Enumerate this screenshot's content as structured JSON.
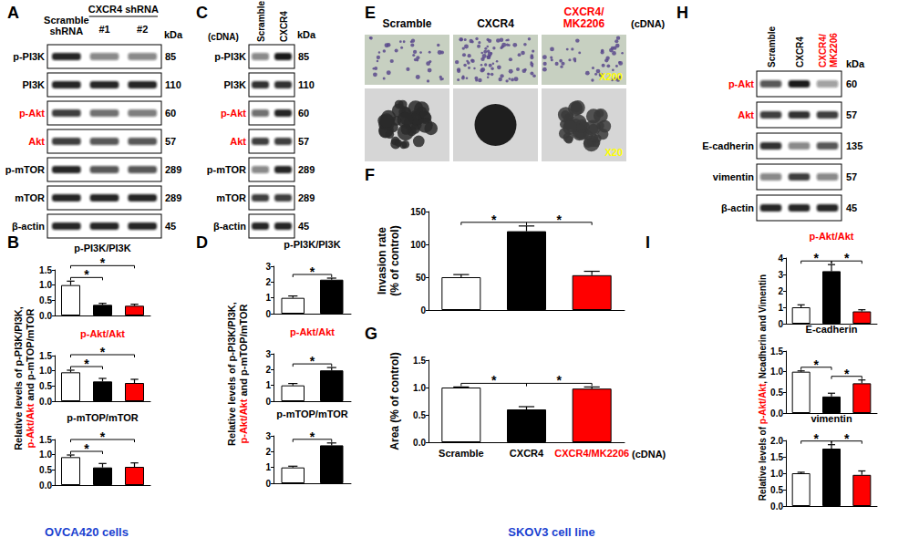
{
  "chart_data": [
    {
      "panel": "B",
      "type": "bar",
      "title": "p-PI3K/PI3K",
      "title_color": "#000000",
      "categories": [
        null,
        null,
        null
      ],
      "values": [
        1.0,
        0.35,
        0.32
      ],
      "errors": [
        0.13,
        0.05,
        0.05
      ],
      "colors": [
        "#ffffff",
        "#000000",
        "#ff0000"
      ],
      "ylim": [
        0,
        1.5
      ],
      "yticks": [
        {
          "value": 0,
          "label": "0.0"
        },
        0.5,
        {
          "value": 1,
          "label": "1.0"
        },
        1.5
      ],
      "significance": [
        [
          0,
          1
        ],
        [
          0,
          2
        ]
      ],
      "significance_label": "*",
      "tick_labels": "y"
    },
    {
      "panel": "B",
      "type": "bar",
      "title": "p-Akt/Akt",
      "title_color": "#ff0000",
      "categories": [
        null,
        null,
        null
      ],
      "values": [
        0.95,
        0.65,
        0.6
      ],
      "errors": [
        0.07,
        0.1,
        0.12
      ],
      "colors": [
        "#ffffff",
        "#000000",
        "#ff0000"
      ],
      "ylim": [
        0,
        1.5
      ],
      "yticks": [
        {
          "value": 0,
          "label": "0.0"
        },
        0.5,
        {
          "value": 1,
          "label": "1.0"
        },
        1.5
      ],
      "significance": [
        [
          0,
          1
        ],
        [
          0,
          2
        ]
      ],
      "significance_label": "*",
      "tick_labels": "y"
    },
    {
      "panel": "B",
      "type": "bar",
      "title": "p-mTOP/mTOR",
      "title_color": "#000000",
      "categories": [
        null,
        null,
        null
      ],
      "values": [
        0.92,
        0.58,
        0.6
      ],
      "errors": [
        0.07,
        0.13,
        0.13
      ],
      "colors": [
        "#ffffff",
        "#000000",
        "#ff0000"
      ],
      "ylim": [
        0,
        1.5
      ],
      "yticks": [
        {
          "value": 0,
          "label": "0.0"
        },
        0.5,
        {
          "value": 1,
          "label": "1.0"
        },
        1.5
      ],
      "significance": [
        [
          0,
          1
        ],
        [
          0,
          2
        ]
      ],
      "significance_label": "*",
      "tick_labels": "y"
    },
    {
      "panel": "D",
      "type": "bar",
      "title": "p-PI3K/PI3K",
      "title_color": "#000000",
      "categories": [
        null,
        null
      ],
      "values": [
        1.0,
        2.15
      ],
      "errors": [
        0.12,
        0.1
      ],
      "colors": [
        "#ffffff",
        "#000000"
      ],
      "ylim": [
        0,
        3
      ],
      "yticks": [
        0,
        1,
        2,
        3
      ],
      "significance": [
        [
          0,
          1
        ]
      ],
      "significance_label": "*",
      "tick_labels": "y"
    },
    {
      "panel": "D",
      "type": "bar",
      "title": "p-Akt/Akt",
      "title_color": "#ff0000",
      "categories": [
        null,
        null
      ],
      "values": [
        1.0,
        1.95
      ],
      "errors": [
        0.12,
        0.18
      ],
      "colors": [
        "#ffffff",
        "#000000"
      ],
      "ylim": [
        0,
        3
      ],
      "yticks": [
        0,
        1,
        2,
        3
      ],
      "significance": [
        [
          0,
          1
        ]
      ],
      "significance_label": "*",
      "tick_labels": "y"
    },
    {
      "panel": "D",
      "type": "bar",
      "title": "p-mTOP/mTOR",
      "title_color": "#000000",
      "categories": [
        null,
        null
      ],
      "values": [
        1.0,
        2.4
      ],
      "errors": [
        0.08,
        0.15
      ],
      "colors": [
        "#ffffff",
        "#000000"
      ],
      "ylim": [
        0,
        3
      ],
      "yticks": [
        0,
        1,
        2,
        3
      ],
      "significance": [
        [
          0,
          1
        ]
      ],
      "significance_label": "*",
      "tick_labels": "y"
    },
    {
      "panel": "F",
      "type": "bar",
      "ylabel": "Invasion rate\n(% of control)",
      "categories": [
        null,
        null,
        null
      ],
      "values": [
        50,
        120,
        53
      ],
      "errors": [
        4,
        8,
        6
      ],
      "colors": [
        "#ffffff",
        "#000000",
        "#ff0000"
      ],
      "ylim": [
        0,
        150
      ],
      "yticks": [
        0,
        50,
        100,
        150
      ],
      "significance": [
        [
          0,
          1
        ],
        [
          1,
          2
        ]
      ],
      "significance_label": "*",
      "tick_labels": "y"
    },
    {
      "panel": "G",
      "type": "bar",
      "ylabel": "Area (% of control)",
      "categories": [
        "Scramble",
        "CXCR4",
        "CXCR4/MK2206"
      ],
      "category_colors": [
        "#000000",
        "#000000",
        "#ff0000"
      ],
      "annotation": "(cDNA)",
      "values": [
        1.0,
        0.6,
        0.98
      ],
      "errors": [
        0.01,
        0.05,
        0.03
      ],
      "colors": [
        "#ffffff",
        "#000000",
        "#ff0000"
      ],
      "ylim": [
        0,
        1.5
      ],
      "yticks": [
        {
          "value": 0,
          "label": "0.0"
        },
        0.5,
        {
          "value": 1,
          "label": "1.0"
        },
        1.5
      ],
      "significance": [
        [
          0,
          1
        ],
        [
          1,
          2
        ]
      ],
      "significance_label": "*"
    },
    {
      "panel": "I",
      "type": "bar",
      "title": "p-Akt/Akt",
      "title_color": "#ff0000",
      "categories": [
        null,
        null,
        null
      ],
      "values": [
        1.0,
        3.2,
        0.75
      ],
      "errors": [
        0.15,
        0.4,
        0.1
      ],
      "colors": [
        "#ffffff",
        "#000000",
        "#ff0000"
      ],
      "ylim": [
        0,
        4
      ],
      "yticks": [
        0,
        1,
        2,
        3,
        4
      ],
      "significance": [
        [
          0,
          1
        ],
        [
          1,
          2
        ]
      ],
      "significance_label": "*",
      "tick_labels": "y"
    },
    {
      "panel": "I",
      "type": "bar",
      "title": "E-cadherin",
      "title_color": "#000000",
      "categories": [
        null,
        null,
        null
      ],
      "values": [
        1.0,
        0.4,
        0.72
      ],
      "errors": [
        0.02,
        0.08,
        0.08
      ],
      "colors": [
        "#ffffff",
        "#000000",
        "#ff0000"
      ],
      "ylim": [
        0,
        1.5
      ],
      "yticks": [
        {
          "value": 0,
          "label": "0.0"
        },
        0.5,
        {
          "value": 1,
          "label": "1.0"
        },
        1.5
      ],
      "significance": [
        [
          0,
          1
        ],
        [
          1,
          2
        ]
      ],
      "significance_label": "*",
      "tick_labels": "y"
    },
    {
      "panel": "I",
      "type": "bar",
      "title": "vimentin",
      "title_color": "#000000",
      "categories": [
        null,
        null,
        null
      ],
      "values": [
        1.0,
        1.75,
        0.95
      ],
      "errors": [
        0.03,
        0.12,
        0.12
      ],
      "colors": [
        "#ffffff",
        "#000000",
        "#ff0000"
      ],
      "ylim": [
        0,
        2
      ],
      "yticks": [
        {
          "value": 0,
          "label": "0.0"
        },
        0.5,
        {
          "value": 1,
          "label": "1.0"
        },
        1.5,
        {
          "value": 2,
          "label": "2.0"
        }
      ],
      "significance": [
        [
          0,
          1
        ],
        [
          1,
          2
        ]
      ],
      "significance_label": "*",
      "tick_labels": "y"
    }
  ],
  "axis_titles": [
    {
      "panel": "B",
      "lines": [
        [
          {
            "text": "Relative levels of p-PI3K/PI3K,",
            "color": "#000000"
          }
        ],
        [
          {
            "text": "p-Akt/Akt",
            "color": "#ff0000"
          },
          {
            "text": " and p-mTOP/mTOR",
            "color": "#000000"
          }
        ]
      ]
    },
    {
      "panel": "D",
      "lines": [
        [
          {
            "text": "Relative levels of p-PI3K/PI3K,",
            "color": "#000000"
          }
        ],
        [
          {
            "text": "p-Akt/Akt",
            "color": "#ff0000"
          },
          {
            "text": " and p-mTOP/mTOR",
            "color": "#000000"
          }
        ]
      ]
    },
    {
      "panel": "I",
      "lines": [
        [
          {
            "text": "Relative levels of ",
            "color": "#000000"
          },
          {
            "text": "p-Akt/Akt",
            "color": "#ff0000"
          },
          {
            "text": ", Ncadherin and Vimentin",
            "color": "#000000"
          }
        ]
      ]
    }
  ],
  "blots": [
    {
      "panel": "A",
      "columns": [
        "Scramble\nshRNA",
        "#1",
        "#2"
      ],
      "column_group": {
        "label": "CXCR4 shRNA",
        "columns": [
          1,
          2
        ]
      },
      "kda_header": "kDa",
      "rows": [
        {
          "label": "p-PI3K",
          "kda": 85,
          "color": "#000000",
          "bands": [
            0.9,
            0.5,
            0.5
          ]
        },
        {
          "label": "PI3K",
          "kda": 110,
          "color": "#000000",
          "bands": [
            0.9,
            0.9,
            0.9
          ]
        },
        {
          "label": "p-Akt",
          "kda": 60,
          "color": "#ff0000",
          "bands": [
            0.8,
            0.6,
            0.55
          ]
        },
        {
          "label": "Akt",
          "kda": 57,
          "color": "#ff0000",
          "bands": [
            0.8,
            0.7,
            0.7
          ]
        },
        {
          "label": "p-mTOR",
          "kda": 289,
          "color": "#000000",
          "bands": [
            0.9,
            0.7,
            0.7
          ]
        },
        {
          "label": "mTOR",
          "kda": 289,
          "color": "#000000",
          "bands": [
            0.9,
            0.9,
            0.9
          ]
        },
        {
          "label": "β-actin",
          "kda": 45,
          "color": "#000000",
          "bands": [
            0.9,
            0.9,
            0.9
          ]
        }
      ]
    },
    {
      "panel": "C",
      "condition": "(cDNA)",
      "columns": [
        "Scramble",
        "CXCR4"
      ],
      "kda_header": "kDa",
      "rows": [
        {
          "label": "p-PI3K",
          "kda": 85,
          "color": "#000000",
          "bands": [
            0.5,
            0.95
          ]
        },
        {
          "label": "PI3K",
          "kda": 110,
          "color": "#000000",
          "bands": [
            0.85,
            0.85
          ]
        },
        {
          "label": "p-Akt",
          "kda": 60,
          "color": "#ff0000",
          "bands": [
            0.6,
            0.9
          ]
        },
        {
          "label": "Akt",
          "kda": 57,
          "color": "#ff0000",
          "bands": [
            0.8,
            0.8
          ]
        },
        {
          "label": "p-mTOR",
          "kda": 289,
          "color": "#000000",
          "bands": [
            0.5,
            0.9
          ]
        },
        {
          "label": "mTOR",
          "kda": 289,
          "color": "#000000",
          "bands": [
            0.8,
            0.8
          ]
        },
        {
          "label": "β-actin",
          "kda": 45,
          "color": "#000000",
          "bands": [
            0.9,
            0.9
          ]
        }
      ]
    },
    {
      "panel": "H",
      "columns": [
        "Scramble",
        "CXCR4",
        "CXCR4/\nMK2206"
      ],
      "column_colors": [
        "#000000",
        "#000000",
        "#ff0000"
      ],
      "kda_header": "kDa",
      "rows": [
        {
          "label": "p-Akt",
          "kda": 60,
          "color": "#ff0000",
          "bands": [
            0.7,
            0.95,
            0.4
          ]
        },
        {
          "label": "Akt",
          "kda": 57,
          "color": "#ff0000",
          "bands": [
            0.8,
            0.85,
            0.8
          ]
        },
        {
          "label": "E-cadherin",
          "kda": 135,
          "color": "#000000",
          "bands": [
            0.85,
            0.5,
            0.7
          ]
        },
        {
          "label": "vimentin",
          "kda": 57,
          "color": "#000000",
          "bands": [
            0.5,
            0.8,
            0.5
          ]
        },
        {
          "label": "β-actin",
          "kda": 45,
          "color": "#000000",
          "bands": [
            0.9,
            0.9,
            0.9
          ]
        }
      ]
    }
  ],
  "images": {
    "panel": "E",
    "columns": [
      "Scramble",
      "CXCR4",
      "CXCR4/\nMK2206"
    ],
    "column_colors": [
      "#000000",
      "#000000",
      "#ff0000"
    ],
    "condition": "(cDNA)",
    "magnifications": [
      "X200",
      "X20"
    ],
    "magnification_color": "#ffff00"
  },
  "panel_letters": [
    "A",
    "B",
    "C",
    "D",
    "E",
    "F",
    "G",
    "H",
    "I"
  ],
  "captions": [
    {
      "text": "OVCA420 cells",
      "color": "#1a3fd0"
    },
    {
      "text": "SKOV3 cell line",
      "color": "#1a3fd0"
    }
  ]
}
